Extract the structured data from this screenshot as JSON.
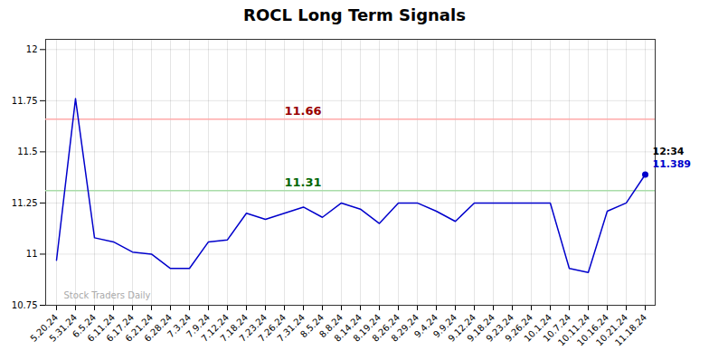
{
  "chart_data": {
    "type": "line",
    "title": "ROCL Long Term Signals",
    "categories": [
      "5.20.24",
      "5.31.24",
      "6.5.24",
      "6.11.24",
      "6.17.24",
      "6.21.24",
      "6.28.24",
      "7.3.24",
      "7.9.24",
      "7.12.24",
      "7.18.24",
      "7.23.24",
      "7.26.24",
      "7.31.24",
      "8.5.24",
      "8.8.24",
      "8.14.24",
      "8.19.24",
      "8.26.24",
      "8.29.24",
      "9.4.24",
      "9.9.24",
      "9.12.24",
      "9.18.24",
      "9.23.24",
      "9.26.24",
      "10.1.24",
      "10.7.24",
      "10.11.24",
      "10.16.24",
      "10.21.24",
      "11.18.24"
    ],
    "values": [
      10.97,
      11.76,
      11.08,
      11.06,
      11.01,
      11.0,
      10.93,
      10.93,
      11.06,
      11.07,
      11.2,
      11.17,
      11.2,
      11.23,
      11.18,
      11.25,
      11.22,
      11.15,
      11.25,
      11.25,
      11.21,
      11.16,
      11.25,
      11.25,
      11.25,
      11.25,
      11.25,
      10.93,
      10.91,
      11.21,
      11.25,
      11.389
    ],
    "color": "#0000cc",
    "reference_lines": [
      {
        "value": 11.66,
        "label": "11.66",
        "color": "#ffaaaa",
        "label_color": "#990000"
      },
      {
        "value": 11.31,
        "label": "11.31",
        "color": "#aaddaa",
        "label_color": "#006600"
      }
    ],
    "annotations": [
      {
        "text": "12:34",
        "color": "#000000"
      },
      {
        "text": "11.389",
        "color": "#0000cc"
      }
    ],
    "watermark": "Stock Traders Daily",
    "ylim": [
      10.75,
      12.05
    ],
    "yticks": [
      10.75,
      11,
      11.25,
      11.5,
      11.75,
      12
    ],
    "grid": true
  }
}
